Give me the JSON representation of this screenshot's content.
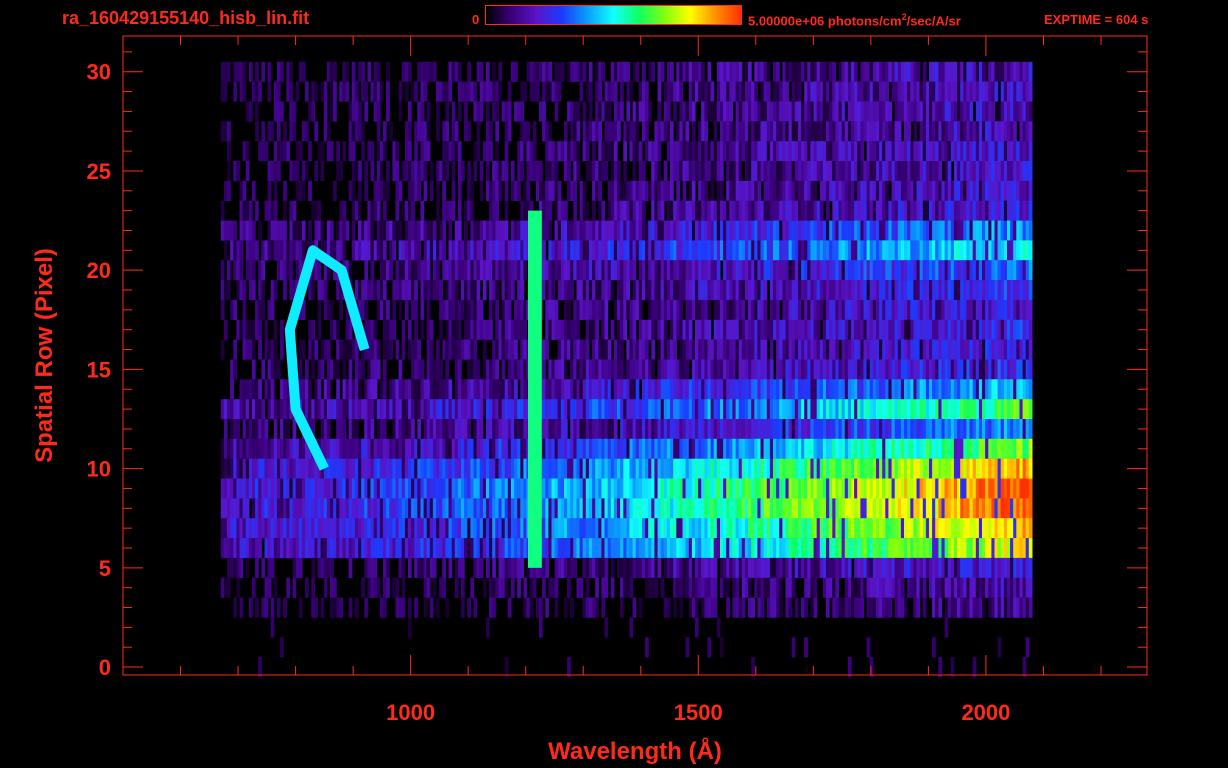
{
  "header": {
    "file_title": "ra_160429155140_hisb_lin.fit",
    "colorbar_min": "0",
    "colorbar_max": "5.00000e+06 photons/cm",
    "colorbar_unit_sup": "2",
    "colorbar_unit_tail": "/sec/A/sr",
    "exptime": "EXPTIME = 604 s"
  },
  "colors": {
    "text": "#ff2a1a",
    "background": "#000000",
    "colormap": [
      "#000000",
      "#3a007a",
      "#5a14c8",
      "#1a3cff",
      "#0aa0ff",
      "#10ffff",
      "#10ff60",
      "#80ff10",
      "#ffff00",
      "#ff9000",
      "#ff3000"
    ]
  },
  "chart_data": {
    "type": "heatmap",
    "title": "ra_160429155140_hisb_lin.fit",
    "xlabel": "Wavelength (Å)",
    "ylabel": "Spatial Row (Pixel)",
    "xlim": [
      500,
      2280
    ],
    "ylim": [
      -0.4,
      31.8
    ],
    "x_ticks": [
      1000,
      1500,
      2000
    ],
    "y_ticks": [
      0,
      5,
      10,
      15,
      20,
      25,
      30
    ],
    "colorbar": {
      "min": 0,
      "max": 5000000,
      "unit": "photons/cm²/sec/A/sr"
    },
    "signal_extent_x": [
      670,
      2080
    ],
    "rows": [
      {
        "row": 30,
        "level": 0.12
      },
      {
        "row": 29,
        "level": 0.12
      },
      {
        "row": 28,
        "level": 0.12
      },
      {
        "row": 27,
        "level": 0.12
      },
      {
        "row": 26,
        "level": 0.13
      },
      {
        "row": 25,
        "level": 0.13
      },
      {
        "row": 24,
        "level": 0.13
      },
      {
        "row": 23,
        "level": 0.15
      },
      {
        "row": 22,
        "level": 0.25
      },
      {
        "row": 21,
        "level": 0.32
      },
      {
        "row": 20,
        "level": 0.22
      },
      {
        "row": 19,
        "level": 0.18
      },
      {
        "row": 18,
        "level": 0.16
      },
      {
        "row": 17,
        "level": 0.16
      },
      {
        "row": 16,
        "level": 0.15
      },
      {
        "row": 15,
        "level": 0.17
      },
      {
        "row": 14,
        "level": 0.28
      },
      {
        "row": 13,
        "level": 0.4
      },
      {
        "row": 12,
        "level": 0.24
      },
      {
        "row": 11,
        "level": 0.42
      },
      {
        "row": 10,
        "level": 0.55
      },
      {
        "row": 9,
        "level": 0.62
      },
      {
        "row": 8,
        "level": 0.62
      },
      {
        "row": 7,
        "level": 0.55
      },
      {
        "row": 6,
        "level": 0.5
      },
      {
        "row": 5,
        "level": 0.15
      },
      {
        "row": 4,
        "level": 0.1
      },
      {
        "row": 3,
        "level": 0.08
      },
      {
        "row": 2,
        "level": 0.03
      },
      {
        "row": 1,
        "level": 0.02
      },
      {
        "row": 0,
        "level": 0.02
      }
    ],
    "features": [
      {
        "name": "Lyman-alpha line",
        "x": 1216,
        "rows": [
          5,
          23
        ]
      },
      {
        "name": "diagonal arc",
        "points": [
          [
            850,
            10
          ],
          [
            800,
            13
          ],
          [
            790,
            17
          ],
          [
            830,
            21
          ],
          [
            880,
            20
          ],
          [
            920,
            16
          ]
        ]
      }
    ]
  }
}
